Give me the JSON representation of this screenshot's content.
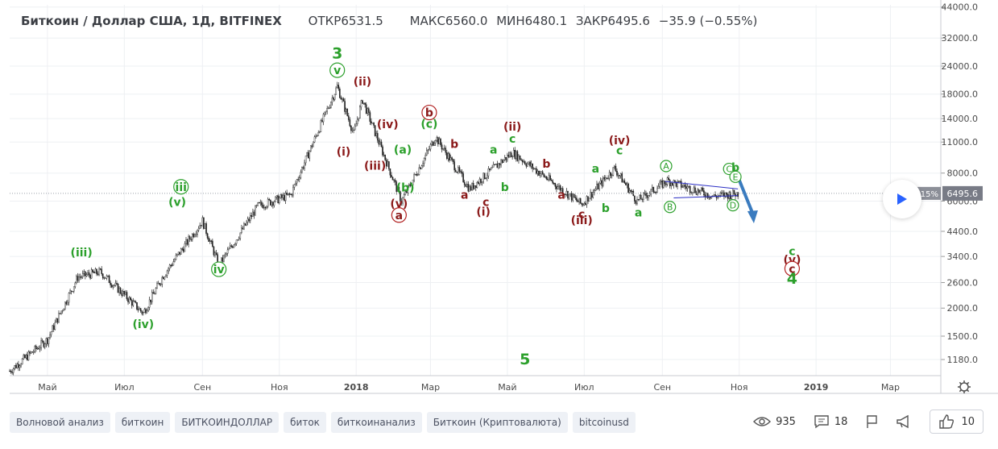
{
  "header": {
    "symbol": "Биткоин / Доллар США, 1Д, BITFINEX",
    "open": "ОТКР6531.5",
    "high": "МАКС6560.0",
    "low": "МИН6480.1",
    "close": "ЗАКР6495.6",
    "change": "−35.9 (−0.55%)"
  },
  "price_badge": {
    "value": "6495.6",
    "pct": "15%",
    "color": "#787b86"
  },
  "chart_data": {
    "type": "candlestick",
    "x_tick_labels": [
      "Май",
      "Июл",
      "Сен",
      "Ноя",
      "2018",
      "Мар",
      "Май",
      "Июл",
      "Сен",
      "Ноя",
      "2019",
      "Мар"
    ],
    "y_tick_labels": [
      "1180.0",
      "1500.0",
      "2000.0",
      "2600.0",
      "3400.0",
      "4400.0",
      "6000.0",
      "8000.0",
      "11000.0",
      "14000.0",
      "18000.0",
      "24000.0",
      "32000.0",
      "44000.0"
    ],
    "y_scale": "log",
    "ylim": [
      1000,
      45000
    ],
    "grid": true,
    "last_price": 6495.6,
    "price_path": [
      [
        "2017-04-01",
        1050
      ],
      [
        "2017-05-01",
        1450
      ],
      [
        "2017-05-25",
        2750
      ],
      [
        "2017-06-12",
        2900
      ],
      [
        "2017-07-16",
        1900
      ],
      [
        "2017-08-01",
        2800
      ],
      [
        "2017-09-01",
        4900
      ],
      [
        "2017-09-14",
        3100
      ],
      [
        "2017-10-15",
        5700
      ],
      [
        "2017-11-10",
        6400
      ],
      [
        "2017-12-17",
        19500
      ],
      [
        "2017-12-30",
        12000
      ],
      [
        "2018-01-06",
        17000
      ],
      [
        "2018-02-06",
        6000
      ],
      [
        "2018-03-05",
        11600
      ],
      [
        "2018-04-01",
        6800
      ],
      [
        "2018-05-05",
        9900
      ],
      [
        "2018-06-29",
        5800
      ],
      [
        "2018-07-25",
        8400
      ],
      [
        "2018-08-12",
        6000
      ],
      [
        "2018-09-05",
        7400
      ],
      [
        "2018-10-12",
        6300
      ],
      [
        "2018-10-31",
        6495.6
      ]
    ],
    "projection_arrow": {
      "from": [
        "2018-10-31",
        7700
      ],
      "to": [
        "2018-11-12",
        4900
      ],
      "color": "#3a7bbf"
    },
    "triangle": {
      "upper": [
        [
          "2018-09-03",
          7350
        ],
        [
          "2018-10-31",
          6800
        ]
      ],
      "lower": [
        [
          "2018-09-10",
          6200
        ],
        [
          "2018-10-31",
          6350
        ]
      ],
      "color": "#2a2ec4"
    },
    "wave_labels": [
      {
        "text": "(iii)",
        "date": "2017-05-28",
        "price": 3550,
        "color": "#2ca02c"
      },
      {
        "text": "(iv)",
        "date": "2017-07-16",
        "price": 1700,
        "color": "#2ca02c"
      },
      {
        "text": "iii",
        "date": "2017-08-15",
        "price": 6950,
        "color": "#2ca02c",
        "circled": true
      },
      {
        "text": "(v)",
        "date": "2017-08-12",
        "price": 5950,
        "color": "#2ca02c"
      },
      {
        "text": "iv",
        "date": "2017-09-14",
        "price": 2980,
        "color": "#2ca02c",
        "circled": true
      },
      {
        "text": "3",
        "date": "2017-12-17",
        "price": 27500,
        "color": "#2ca02c",
        "big": true
      },
      {
        "text": "v",
        "date": "2017-12-17",
        "price": 23000,
        "color": "#2ca02c",
        "circled": true
      },
      {
        "text": "(i)",
        "date": "2017-12-22",
        "price": 10000,
        "color": "#8b1a1a"
      },
      {
        "text": "(ii)",
        "date": "2018-01-06",
        "price": 20500,
        "color": "#8b1a1a"
      },
      {
        "text": "(iii)",
        "date": "2018-01-16",
        "price": 8650,
        "color": "#8b1a1a"
      },
      {
        "text": "(iv)",
        "date": "2018-01-26",
        "price": 13200,
        "color": "#8b1a1a"
      },
      {
        "text": "(v)",
        "date": "2018-02-04",
        "price": 5850,
        "color": "#8b1a1a"
      },
      {
        "text": "a",
        "date": "2018-02-04",
        "price": 5200,
        "color": "#8b1a1a",
        "circled": true,
        "dark": true
      },
      {
        "text": "(a)",
        "date": "2018-02-07",
        "price": 10200,
        "color": "#2ca02c"
      },
      {
        "text": "(b)",
        "date": "2018-02-09",
        "price": 6900,
        "color": "#2ca02c"
      },
      {
        "text": "b",
        "date": "2018-02-28",
        "price": 14900,
        "color": "#8b1a1a",
        "circled": true,
        "dark": true
      },
      {
        "text": "(c)",
        "date": "2018-02-28",
        "price": 13300,
        "color": "#2ca02c"
      },
      {
        "text": "b",
        "date": "2018-03-20",
        "price": 10800,
        "color": "#8b1a1a"
      },
      {
        "text": "a",
        "date": "2018-03-28",
        "price": 6400,
        "color": "#8b1a1a"
      },
      {
        "text": "c",
        "date": "2018-04-14",
        "price": 5950,
        "color": "#8b1a1a"
      },
      {
        "text": "(i)",
        "date": "2018-04-12",
        "price": 5400,
        "color": "#8b1a1a"
      },
      {
        "text": "a",
        "date": "2018-04-20",
        "price": 10200,
        "color": "#2ca02c"
      },
      {
        "text": "b",
        "date": "2018-04-29",
        "price": 6950,
        "color": "#2ca02c"
      },
      {
        "text": "(ii)",
        "date": "2018-05-05",
        "price": 12900,
        "color": "#8b1a1a"
      },
      {
        "text": "c",
        "date": "2018-05-05",
        "price": 11400,
        "color": "#2ca02c"
      },
      {
        "text": "b",
        "date": "2018-06-01",
        "price": 8800,
        "color": "#8b1a1a"
      },
      {
        "text": "a",
        "date": "2018-06-13",
        "price": 6400,
        "color": "#8b1a1a"
      },
      {
        "text": "a",
        "date": "2018-07-10",
        "price": 8400,
        "color": "#2ca02c"
      },
      {
        "text": "c",
        "date": "2018-06-29",
        "price": 5250,
        "color": "#8b1a1a"
      },
      {
        "text": "(iii)",
        "date": "2018-06-29",
        "price": 4950,
        "color": "#8b1a1a"
      },
      {
        "text": "b",
        "date": "2018-07-18",
        "price": 5600,
        "color": "#2ca02c"
      },
      {
        "text": "(iv)",
        "date": "2018-07-29",
        "price": 11200,
        "color": "#8b1a1a"
      },
      {
        "text": "c",
        "date": "2018-07-29",
        "price": 10100,
        "color": "#2ca02c"
      },
      {
        "text": "a",
        "date": "2018-08-13",
        "price": 5350,
        "color": "#2ca02c"
      },
      {
        "text": "A",
        "date": "2018-09-04",
        "price": 8600,
        "color": "#2ca02c",
        "circled": true,
        "small": true
      },
      {
        "text": "B",
        "date": "2018-09-07",
        "price": 5650,
        "color": "#2ca02c",
        "circled": true,
        "small": true
      },
      {
        "text": "C",
        "date": "2018-10-24",
        "price": 8350,
        "color": "#2ca02c",
        "circled": true,
        "small": true
      },
      {
        "text": "b",
        "date": "2018-10-29",
        "price": 8500,
        "color": "#2ca02c"
      },
      {
        "text": "E",
        "date": "2018-10-29",
        "price": 7700,
        "color": "#2ca02c",
        "circled": true,
        "small": true
      },
      {
        "text": "D",
        "date": "2018-10-27",
        "price": 5750,
        "color": "#2ca02c",
        "circled": true,
        "small": true
      },
      {
        "text": "c",
        "date": "2018-12-13",
        "price": 3600,
        "color": "#2ca02c"
      },
      {
        "text": "(v)",
        "date": "2018-12-13",
        "price": 3300,
        "color": "#8b1a1a"
      },
      {
        "text": "c",
        "date": "2018-12-13",
        "price": 3000,
        "color": "#8b1a1a",
        "circled": true,
        "dark": true
      },
      {
        "text": "4",
        "date": "2018-12-13",
        "price": 2720,
        "color": "#2ca02c",
        "big": true
      },
      {
        "text": "5",
        "date": "2018-05-15",
        "price": 1190,
        "color": "#2ca02c",
        "big": true
      }
    ]
  },
  "tags": [
    "Волновой анализ",
    "биткоин",
    "БИТКОИНДОЛЛАР",
    "биток",
    "биткоинанализ",
    "Биткоин (Криптовалюта)",
    "bitcoinusd"
  ],
  "stats": {
    "views": "935",
    "comments": "18",
    "likes": "10"
  }
}
